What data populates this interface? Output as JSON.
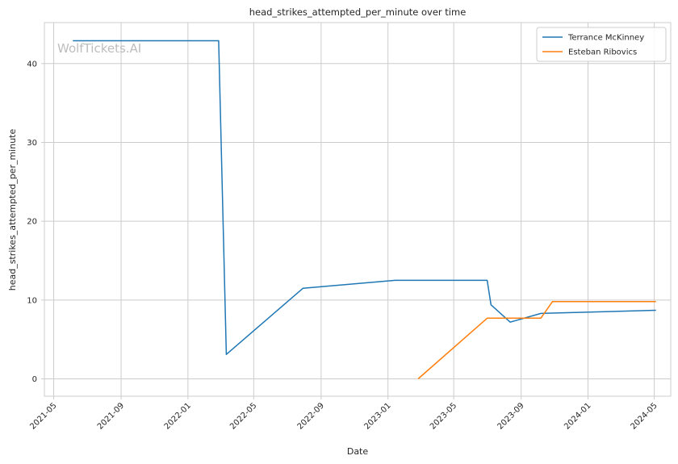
{
  "chart_data": {
    "type": "line",
    "title": "head_strikes_attempted_per_minute over time",
    "xlabel": "Date",
    "ylabel": "head_strikes_attempted_per_minute",
    "watermark": "WolfTickets.AI",
    "xlim": [
      "2021-04-14",
      "2024-05-31"
    ],
    "ylim": [
      -2.2,
      45.2
    ],
    "yticks": [
      0,
      10,
      20,
      30,
      40
    ],
    "xticks": [
      "2021-05",
      "2021-09",
      "2022-01",
      "2022-05",
      "2022-09",
      "2023-01",
      "2023-05",
      "2023-09",
      "2024-01",
      "2024-05"
    ],
    "grid": true,
    "legend_position": "top-right",
    "series": [
      {
        "name": "Terrance McKinney",
        "color": "#1f77b4",
        "points": [
          {
            "x": "2021-06-05",
            "y": 42.9
          },
          {
            "x": "2022-02-26",
            "y": 42.9
          },
          {
            "x": "2022-03-12",
            "y": 3.1
          },
          {
            "x": "2022-07-30",
            "y": 11.5
          },
          {
            "x": "2023-01-14",
            "y": 12.5
          },
          {
            "x": "2023-07-01",
            "y": 12.5
          },
          {
            "x": "2023-07-08",
            "y": 9.4
          },
          {
            "x": "2023-08-12",
            "y": 7.2
          },
          {
            "x": "2023-10-07",
            "y": 8.3
          },
          {
            "x": "2024-05-04",
            "y": 8.7
          }
        ]
      },
      {
        "name": "Esteban Ribovics",
        "color": "#ff7f0e",
        "points": [
          {
            "x": "2023-02-25",
            "y": 0.0
          },
          {
            "x": "2023-07-01",
            "y": 7.7
          },
          {
            "x": "2023-10-07",
            "y": 7.7
          },
          {
            "x": "2023-10-28",
            "y": 9.8
          },
          {
            "x": "2024-05-04",
            "y": 9.8
          }
        ]
      }
    ]
  }
}
